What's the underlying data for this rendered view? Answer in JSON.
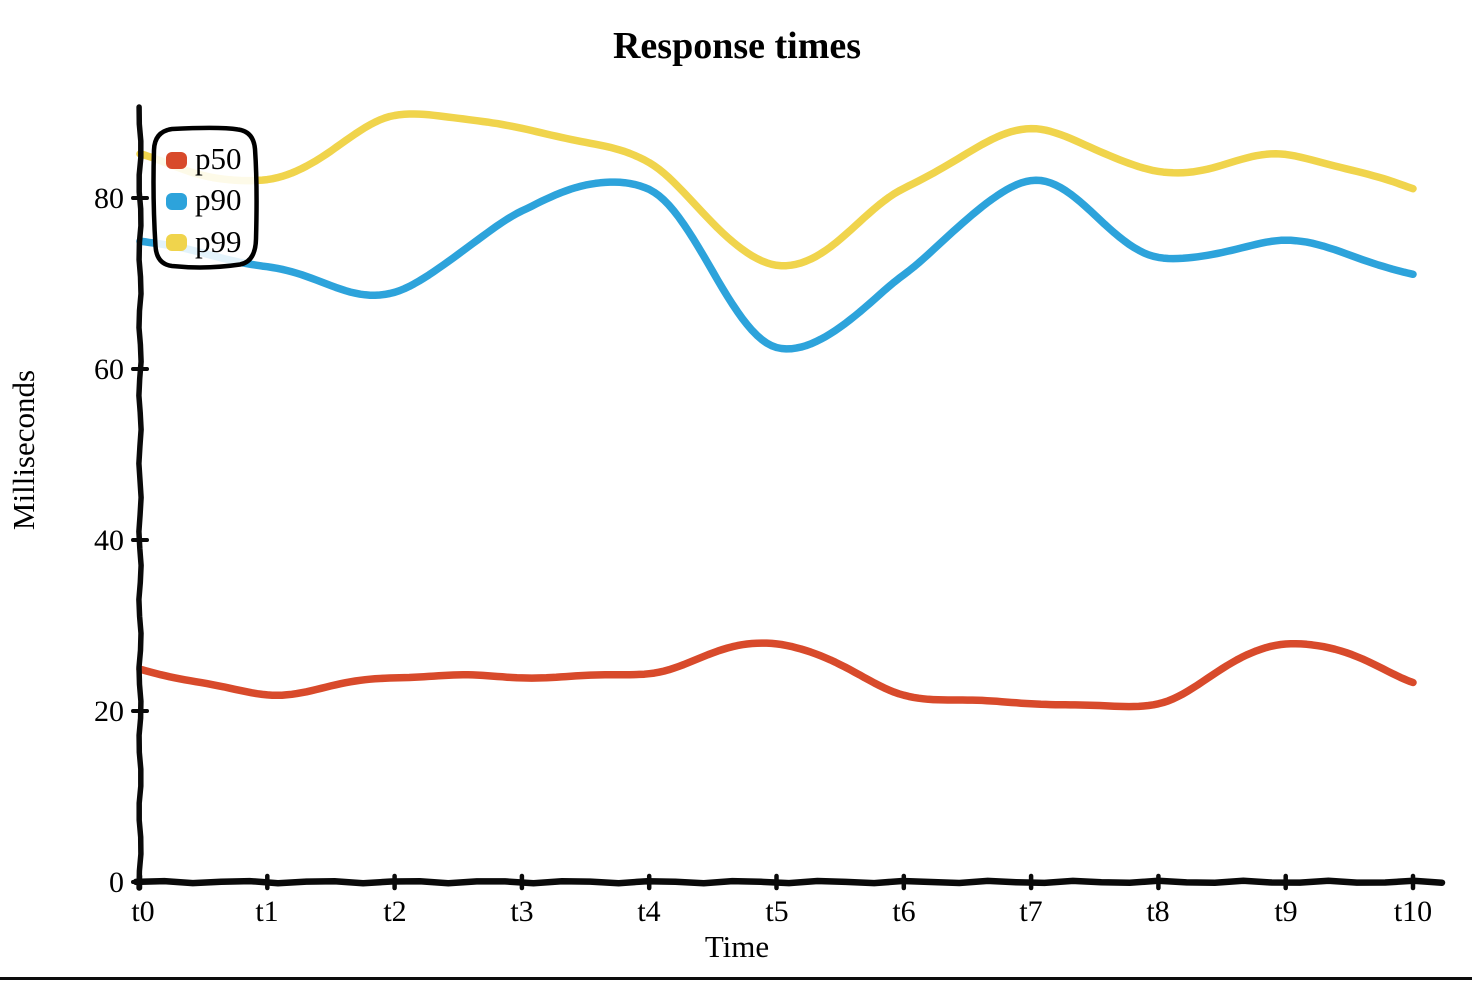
{
  "chart_data": {
    "type": "line",
    "title": "Response times",
    "xlabel": "Time",
    "ylabel": "Milliseconds",
    "style": "hand-drawn-sketch",
    "grid": false,
    "legend_position": "top-left",
    "x": [
      "t0",
      "t1",
      "t2",
      "t3",
      "t4",
      "t5",
      "t6",
      "t7",
      "t8",
      "t9",
      "t10"
    ],
    "ylim": [
      0,
      93
    ],
    "y_tick_values": [
      0,
      20,
      40,
      60,
      80
    ],
    "series": [
      {
        "name": "p50",
        "color": "#D84A2B",
        "values": [
          25,
          22,
          24,
          24,
          24.5,
          28,
          22,
          21,
          21,
          28,
          23.5
        ]
      },
      {
        "name": "p90",
        "color": "#2DA3DB",
        "values": [
          75,
          72,
          69,
          78.5,
          81,
          62.5,
          71,
          82,
          73,
          75,
          71
        ]
      },
      {
        "name": "p99",
        "color": "#F0D44C",
        "values": [
          85,
          82,
          89.5,
          88,
          84,
          72,
          81,
          88,
          83,
          85,
          81
        ]
      }
    ]
  },
  "title": "Response times",
  "x_axis": {
    "label": "Time",
    "ticks": [
      "t0",
      "t1",
      "t2",
      "t3",
      "t4",
      "t5",
      "t6",
      "t7",
      "t8",
      "t9",
      "t10"
    ]
  },
  "y_axis": {
    "label": "Milliseconds",
    "ticks": [
      "0",
      "20",
      "40",
      "60",
      "80"
    ]
  },
  "legend": {
    "items": [
      {
        "label": "p50",
        "color": "#D84A2B"
      },
      {
        "label": "p90",
        "color": "#2DA3DB"
      },
      {
        "label": "p99",
        "color": "#F0D44C"
      }
    ]
  },
  "colors": {
    "axis": "#0a0a0a",
    "background": "#ffffff",
    "p50": "#D84A2B",
    "p90": "#2DA3DB",
    "p99": "#F0D44C"
  }
}
